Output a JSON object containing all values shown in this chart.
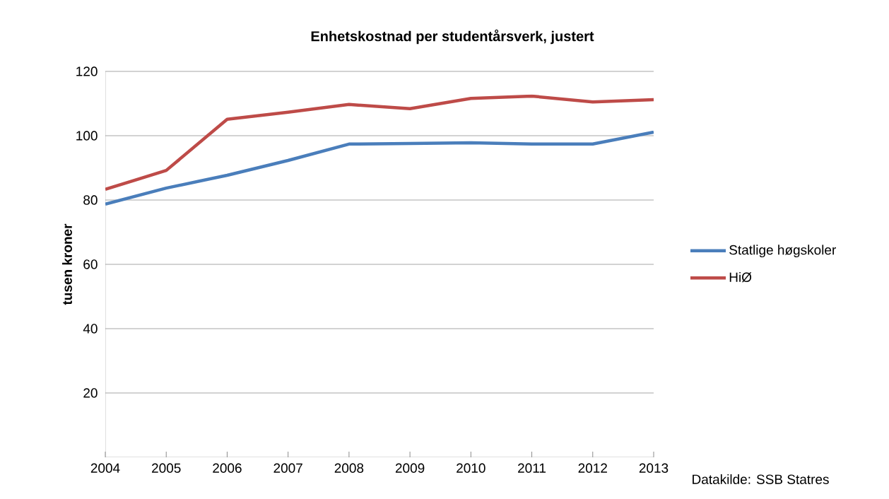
{
  "chart_data": {
    "type": "line",
    "title": "Enhetskostnad per studentårsverk, justert",
    "ylabel": "tusen kroner",
    "categories": [
      "2004",
      "2005",
      "2006",
      "2007",
      "2008",
      "2009",
      "2010",
      "2011",
      "2012",
      "2013"
    ],
    "series": [
      {
        "name": "Statlige høgskoler",
        "color": "#4a7ebb",
        "values": [
          78.7,
          83.7,
          87.7,
          92.3,
          97.4,
          97.6,
          97.8,
          97.4,
          97.4,
          101.1
        ]
      },
      {
        "name": "HiØ",
        "color": "#be4b48",
        "values": [
          83.3,
          89.2,
          105.1,
          107.3,
          109.7,
          108.4,
          111.6,
          112.3,
          110.5,
          111.2
        ]
      }
    ],
    "ylim": [
      0,
      120
    ],
    "yticks": [
      20,
      40,
      60,
      80,
      100,
      120
    ],
    "grid": "y",
    "legend": "right",
    "marker": "none",
    "line_style": "solid",
    "annotations": [
      "Datakilde: SSB Statres"
    ]
  }
}
